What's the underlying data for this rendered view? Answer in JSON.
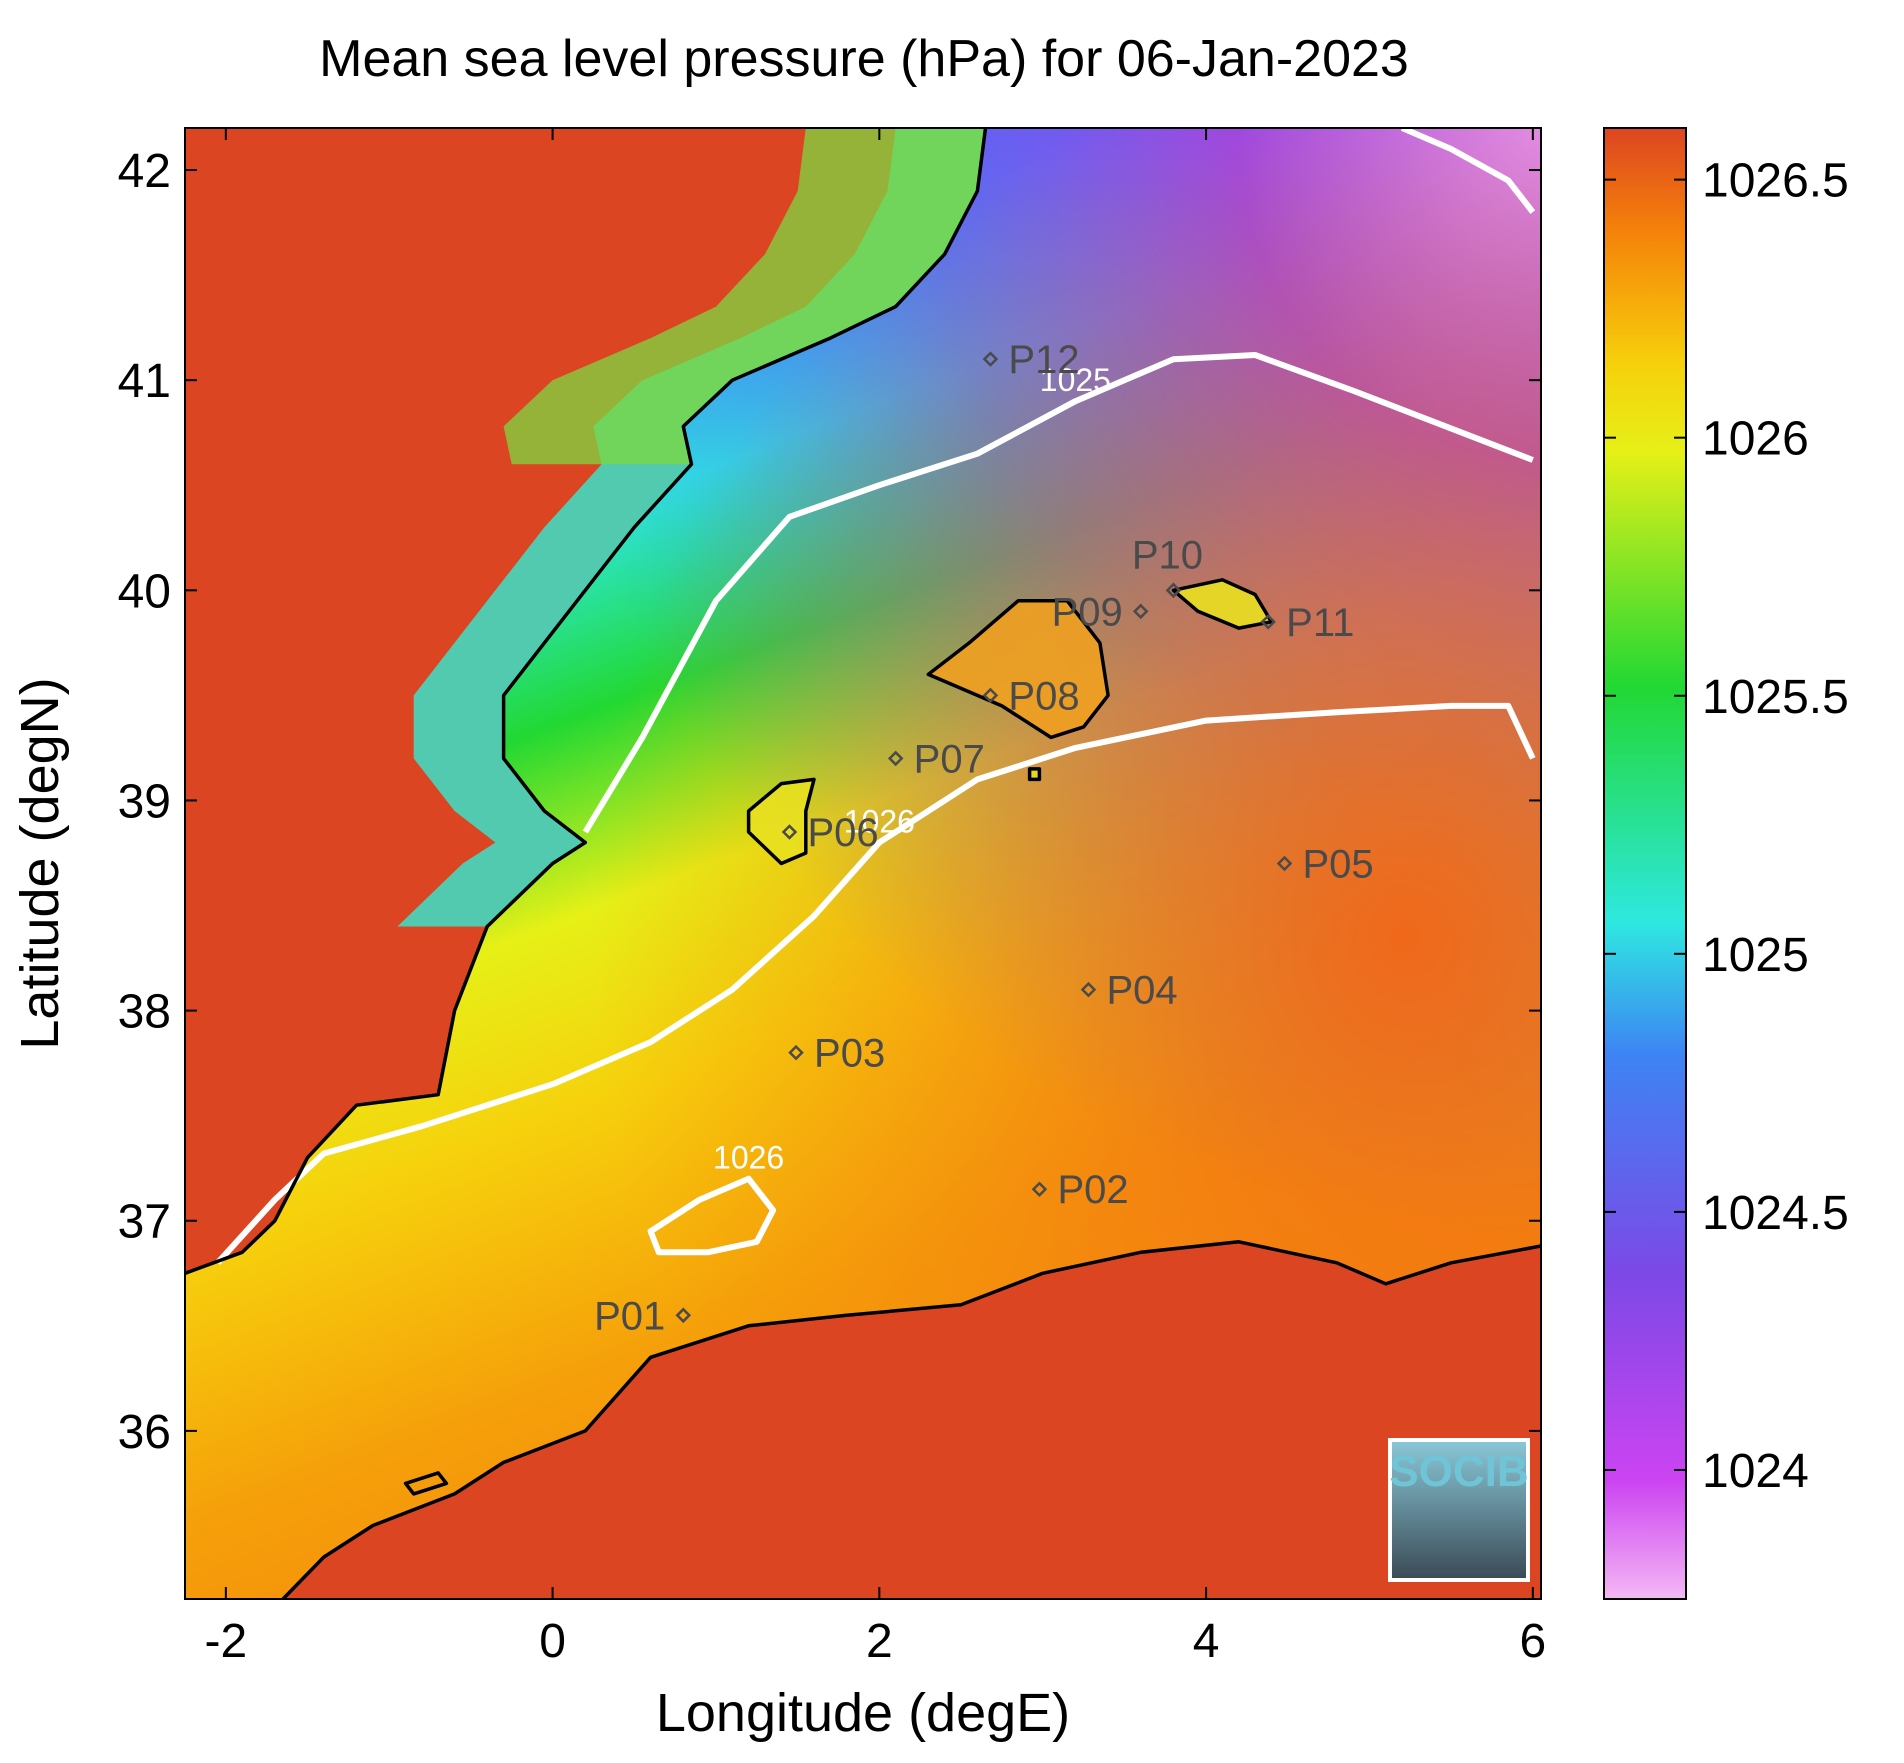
{
  "chart_data": {
    "type": "heatmap",
    "title": "Mean sea level pressure (hPa) for 06-Jan-2023",
    "xlabel": "Longitude (degE)",
    "ylabel": "Latitude (degN)",
    "xlim": [
      -2.25,
      6.05
    ],
    "ylim": [
      35.2,
      42.2
    ],
    "xticks": [
      -2,
      0,
      2,
      4,
      6
    ],
    "yticks": [
      36,
      37,
      38,
      39,
      40,
      41,
      42
    ],
    "colorbar": {
      "ticks": [
        1024,
        1024.5,
        1025,
        1025.5,
        1026,
        1026.5
      ],
      "range": [
        1023.75,
        1026.6
      ],
      "stops": [
        "#f4b8f4",
        "#cc44f2",
        "#7d48e6",
        "#3d84f4",
        "#2ee8e0",
        "#22d833",
        "#e6f017",
        "#f6d00c",
        "#f5820a",
        "#dc4522"
      ]
    },
    "contours": [
      {
        "label": "1025",
        "points": [
          [
            0.2,
            38.85
          ],
          [
            0.55,
            39.3
          ],
          [
            1.0,
            39.95
          ],
          [
            1.45,
            40.35
          ],
          [
            2.0,
            40.5
          ],
          [
            2.6,
            40.65
          ],
          [
            3.2,
            40.9
          ],
          [
            3.8,
            41.1
          ],
          [
            4.3,
            41.12
          ],
          [
            4.9,
            40.95
          ],
          [
            5.4,
            40.8
          ],
          [
            6.0,
            40.62
          ]
        ]
      },
      {
        "label": "1026",
        "points": [
          [
            -2.05,
            36.8
          ],
          [
            -1.7,
            37.1
          ],
          [
            -1.4,
            37.32
          ],
          [
            -0.8,
            37.45
          ],
          [
            0.0,
            37.65
          ],
          [
            0.6,
            37.85
          ],
          [
            1.1,
            38.1
          ],
          [
            1.6,
            38.45
          ],
          [
            2.0,
            38.8
          ],
          [
            2.6,
            39.1
          ],
          [
            3.2,
            39.25
          ],
          [
            4.0,
            39.38
          ],
          [
            4.8,
            39.42
          ],
          [
            5.5,
            39.45
          ],
          [
            5.85,
            39.45
          ],
          [
            6.0,
            39.2
          ]
        ]
      },
      {
        "label": "1026",
        "closed": true,
        "points": [
          [
            0.6,
            36.95
          ],
          [
            0.9,
            37.1
          ],
          [
            1.2,
            37.2
          ],
          [
            1.35,
            37.05
          ],
          [
            1.25,
            36.9
          ],
          [
            0.95,
            36.85
          ],
          [
            0.65,
            36.85
          ]
        ]
      },
      {
        "label": "",
        "points": [
          [
            5.2,
            42.2
          ],
          [
            5.5,
            42.1
          ],
          [
            5.85,
            41.95
          ],
          [
            6.0,
            41.8
          ]
        ]
      }
    ],
    "coastlines": [
      {
        "name": "iberia-east",
        "points": [
          [
            2.65,
            42.2
          ],
          [
            2.6,
            41.9
          ],
          [
            2.4,
            41.6
          ],
          [
            2.1,
            41.35
          ],
          [
            1.7,
            41.2
          ],
          [
            1.1,
            41.0
          ],
          [
            0.8,
            40.78
          ],
          [
            0.85,
            40.6
          ],
          [
            0.5,
            40.3
          ],
          [
            0.15,
            39.95
          ],
          [
            -0.3,
            39.5
          ],
          [
            -0.3,
            39.2
          ],
          [
            -0.05,
            38.95
          ],
          [
            0.2,
            38.8
          ],
          [
            0.0,
            38.7
          ],
          [
            -0.4,
            38.4
          ],
          [
            -0.6,
            38.0
          ],
          [
            -0.7,
            37.6
          ],
          [
            -1.2,
            37.55
          ],
          [
            -1.5,
            37.3
          ],
          [
            -1.7,
            37.0
          ],
          [
            -1.9,
            36.85
          ],
          [
            -2.25,
            36.75
          ]
        ]
      },
      {
        "name": "africa-north",
        "points": [
          [
            -1.65,
            35.2
          ],
          [
            -1.4,
            35.4
          ],
          [
            -1.1,
            35.55
          ],
          [
            -0.6,
            35.7
          ],
          [
            -0.3,
            35.85
          ],
          [
            0.2,
            36.0
          ],
          [
            0.6,
            36.35
          ],
          [
            1.2,
            36.5
          ],
          [
            1.8,
            36.55
          ],
          [
            2.5,
            36.6
          ],
          [
            3.0,
            36.75
          ],
          [
            3.6,
            36.85
          ],
          [
            4.2,
            36.9
          ],
          [
            4.8,
            36.8
          ],
          [
            5.1,
            36.7
          ],
          [
            5.5,
            36.8
          ],
          [
            6.05,
            36.88
          ]
        ]
      },
      {
        "name": "mallorca",
        "closed": true,
        "points": [
          [
            2.3,
            39.6
          ],
          [
            2.55,
            39.75
          ],
          [
            2.85,
            39.95
          ],
          [
            3.15,
            39.95
          ],
          [
            3.35,
            39.75
          ],
          [
            3.4,
            39.5
          ],
          [
            3.25,
            39.35
          ],
          [
            3.05,
            39.3
          ],
          [
            2.75,
            39.45
          ],
          [
            2.45,
            39.55
          ]
        ]
      },
      {
        "name": "menorca",
        "closed": true,
        "points": [
          [
            3.8,
            40.0
          ],
          [
            4.1,
            40.05
          ],
          [
            4.3,
            39.98
          ],
          [
            4.4,
            39.85
          ],
          [
            4.2,
            39.82
          ],
          [
            3.95,
            39.9
          ]
        ]
      },
      {
        "name": "ibiza",
        "closed": true,
        "points": [
          [
            1.2,
            38.95
          ],
          [
            1.4,
            39.08
          ],
          [
            1.6,
            39.1
          ],
          [
            1.55,
            38.95
          ],
          [
            1.55,
            38.75
          ],
          [
            1.4,
            38.7
          ],
          [
            1.2,
            38.85
          ]
        ]
      },
      {
        "name": "cabrera",
        "closed": true,
        "points": [
          [
            2.92,
            39.15
          ],
          [
            2.98,
            39.15
          ],
          [
            2.98,
            39.1
          ],
          [
            2.92,
            39.1
          ]
        ]
      },
      {
        "name": "lagoon",
        "closed": true,
        "points": [
          [
            -0.9,
            35.75
          ],
          [
            -0.7,
            35.8
          ],
          [
            -0.65,
            35.75
          ],
          [
            -0.85,
            35.7
          ]
        ]
      }
    ],
    "stations": [
      {
        "name": "P01",
        "lon": 0.8,
        "lat": 36.55,
        "label_side": "left"
      },
      {
        "name": "P02",
        "lon": 2.98,
        "lat": 37.15,
        "label_side": "right"
      },
      {
        "name": "P03",
        "lon": 1.49,
        "lat": 37.8,
        "label_side": "right"
      },
      {
        "name": "P04",
        "lon": 3.28,
        "lat": 38.1,
        "label_side": "right"
      },
      {
        "name": "P05",
        "lon": 4.48,
        "lat": 38.7,
        "label_side": "right"
      },
      {
        "name": "P06",
        "lon": 1.45,
        "lat": 38.85,
        "label_side": "right"
      },
      {
        "name": "P07",
        "lon": 2.1,
        "lat": 39.2,
        "label_side": "right"
      },
      {
        "name": "P08",
        "lon": 2.68,
        "lat": 39.5,
        "label_side": "right"
      },
      {
        "name": "P09",
        "lon": 3.6,
        "lat": 39.9,
        "label_side": "left"
      },
      {
        "name": "P10",
        "lon": 3.8,
        "lat": 40.0,
        "label_side": "above"
      },
      {
        "name": "P11",
        "lon": 4.38,
        "lat": 39.85,
        "label_side": "right"
      },
      {
        "name": "P12",
        "lon": 2.68,
        "lat": 41.1,
        "label_side": "right"
      }
    ],
    "grid": false,
    "logo": "SOCIB"
  }
}
